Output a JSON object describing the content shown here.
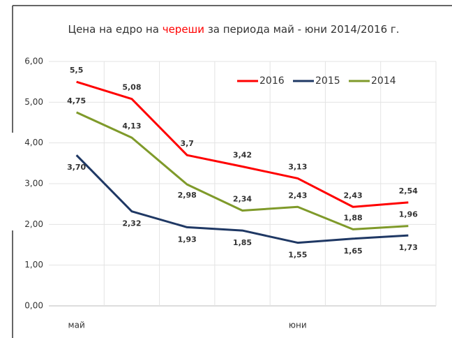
{
  "chart_data": {
    "type": "line",
    "title_parts": [
      "Цена на едро на",
      "череши",
      "за периода май - юни 2014/2016 г."
    ],
    "categories": [
      "май",
      null,
      null,
      null,
      "юни",
      null,
      null
    ],
    "series": [
      {
        "name": "2016",
        "color": "#ff0000",
        "values": [
          5.5,
          5.08,
          3.7,
          3.42,
          3.13,
          2.43,
          2.54
        ],
        "value_labels": [
          "5,5",
          "5,08",
          "3,7",
          "3,42",
          "3,13",
          "2,43",
          "2,54"
        ]
      },
      {
        "name": "2015",
        "color": "#1f3864",
        "values": [
          3.7,
          2.32,
          1.93,
          1.85,
          1.55,
          1.65,
          1.73
        ],
        "value_labels": [
          "3,70",
          "2,32",
          "1,93",
          "1,85",
          "1,55",
          "1,65",
          "1,73"
        ]
      },
      {
        "name": "2014",
        "color": "#7f9a2a",
        "values": [
          4.75,
          4.13,
          2.98,
          2.34,
          2.43,
          1.88,
          1.96
        ],
        "value_labels": [
          "4,75",
          "4,13",
          "2,98",
          "2,34",
          "2,43",
          "1,88",
          "1,96"
        ]
      }
    ],
    "ylim": [
      0,
      6
    ],
    "yticks": [
      {
        "value": 0,
        "label": "0,00"
      },
      {
        "value": 1,
        "label": "1,00"
      },
      {
        "value": 2,
        "label": "2,00"
      },
      {
        "value": 3,
        "label": "3,00"
      },
      {
        "value": 4,
        "label": "4,00"
      },
      {
        "value": 5,
        "label": "5,00"
      },
      {
        "value": 6,
        "label": "6,00"
      }
    ],
    "grid": true,
    "legend": "top-right"
  }
}
